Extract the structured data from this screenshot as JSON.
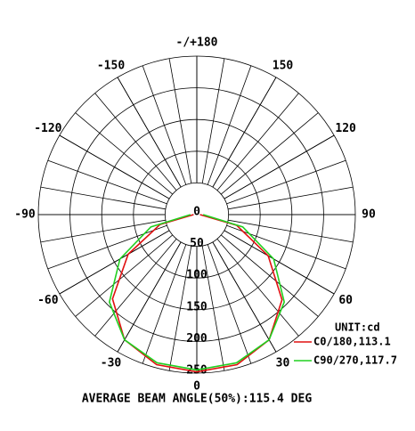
{
  "chart_data": {
    "type": "polar",
    "theta_ticks": [
      {
        "value": 180,
        "label": "-/+180"
      },
      150,
      120,
      90,
      60,
      30,
      0,
      -30,
      -60,
      -90,
      -120,
      -150
    ],
    "rlim": [
      0,
      250
    ],
    "rticks": [
      0,
      50,
      100,
      150,
      200,
      250
    ],
    "unit_label": "UNIT:cd",
    "x": [
      -90,
      -75,
      -60,
      -45,
      -30,
      -15,
      0,
      15,
      30,
      45,
      60,
      75,
      90
    ],
    "series": [
      {
        "name": "C0/180,113.1",
        "color": "#e01010",
        "values": [
          5,
          60,
          125,
          188,
          228,
          245,
          248,
          245,
          228,
          190,
          130,
          65,
          5
        ]
      },
      {
        "name": "C90/270,117.7",
        "color": "#20d020",
        "values": [
          10,
          75,
          140,
          195,
          228,
          242,
          245,
          242,
          228,
          195,
          140,
          75,
          10
        ]
      }
    ],
    "footer": "AVERAGE BEAM ANGLE(50%):115.4 DEG"
  }
}
